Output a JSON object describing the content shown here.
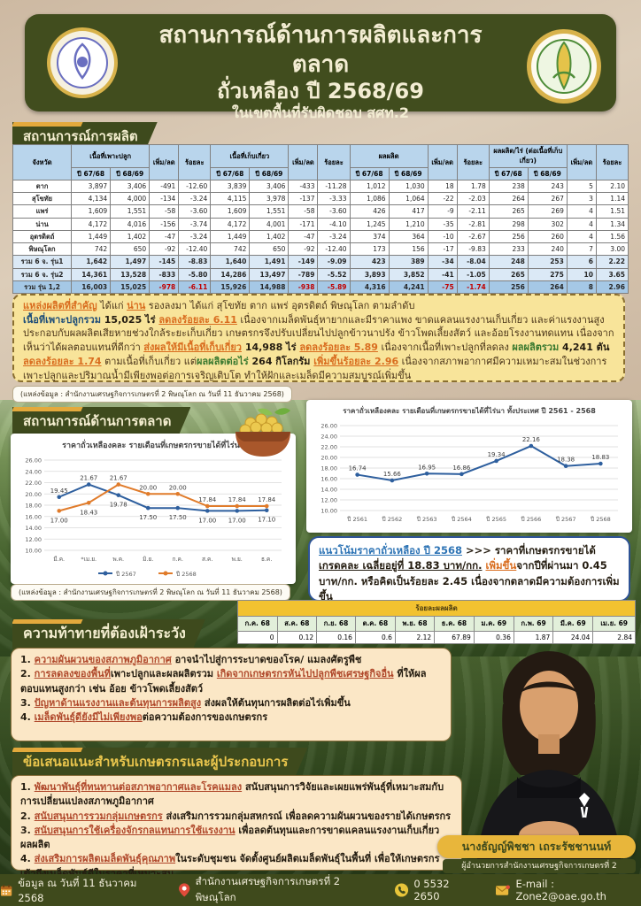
{
  "header": {
    "title_line1": "สถานการณ์ด้านการผลิตและการตลาด",
    "title_line2": "ถั่วเหลือง ปี 2568/69",
    "title_line3": "ในเขตพื้นที่รับผิดชอบ สศท.2"
  },
  "production": {
    "section_title": "สถานการณ์การผลิต",
    "table": {
      "col_province": "จังหวัด",
      "groups": [
        "เนื้อที่เพาะปลูก",
        "เนื้อที่เก็บเกี่ยว",
        "ผลผลิต",
        "ผลผลิต/ไร่ (ต่อเนื้อที่เก็บเกี่ยว)"
      ],
      "inc_label": "เพิ่ม/ลด",
      "pct_label": "ร้อยละ",
      "years": [
        "ปี 67/68",
        "ปี 68/69"
      ],
      "rows": [
        {
          "name": "ตาก",
          "type": "data",
          "v": [
            "3,897",
            "3,406",
            "-491",
            "-12.60",
            "3,839",
            "3,406",
            "-433",
            "-11.28",
            "1,012",
            "1,030",
            "18",
            "1.78",
            "238",
            "243",
            "5",
            "2.10"
          ]
        },
        {
          "name": "สุโขทัย",
          "type": "data",
          "v": [
            "4,134",
            "4,000",
            "-134",
            "-3.24",
            "4,115",
            "3,978",
            "-137",
            "-3.33",
            "1,086",
            "1,064",
            "-22",
            "-2.03",
            "264",
            "267",
            "3",
            "1.14"
          ]
        },
        {
          "name": "แพร่",
          "type": "data",
          "v": [
            "1,609",
            "1,551",
            "-58",
            "-3.60",
            "1,609",
            "1,551",
            "-58",
            "-3.60",
            "426",
            "417",
            "-9",
            "-2.11",
            "265",
            "269",
            "4",
            "1.51"
          ]
        },
        {
          "name": "น่าน",
          "type": "data",
          "v": [
            "4,172",
            "4,016",
            "-156",
            "-3.74",
            "4,172",
            "4,001",
            "-171",
            "-4.10",
            "1,245",
            "1,210",
            "-35",
            "-2.81",
            "298",
            "302",
            "4",
            "1.34"
          ]
        },
        {
          "name": "อุตรดิตถ์",
          "type": "data",
          "v": [
            "1,449",
            "1,402",
            "-47",
            "-3.24",
            "1,449",
            "1,402",
            "-47",
            "-3.24",
            "374",
            "364",
            "-10",
            "-2.67",
            "256",
            "260",
            "4",
            "1.56"
          ]
        },
        {
          "name": "พิษณุโลก",
          "type": "data",
          "v": [
            "742",
            "650",
            "-92",
            "-12.40",
            "742",
            "650",
            "-92",
            "-12.40",
            "173",
            "156",
            "-17",
            "-9.83",
            "233",
            "240",
            "7",
            "3.00"
          ]
        },
        {
          "name": "รวม 6 จ. รุ่น1",
          "type": "subtotal",
          "v": [
            "1,642",
            "1,497",
            "-145",
            "-8.83",
            "1,640",
            "1,491",
            "-149",
            "-9.09",
            "423",
            "389",
            "-34",
            "-8.04",
            "248",
            "253",
            "6",
            "2.22"
          ]
        },
        {
          "name": "รวม 6 จ. รุ่น2",
          "type": "subtotal",
          "v": [
            "14,361",
            "13,528",
            "-833",
            "-5.80",
            "14,286",
            "13,497",
            "-789",
            "-5.52",
            "3,893",
            "3,852",
            "-41",
            "-1.05",
            "265",
            "275",
            "10",
            "3.65"
          ]
        },
        {
          "name": "รวม รุ่น 1,2",
          "type": "total",
          "v": [
            "16,003",
            "15,025",
            "-978",
            "-6.11",
            "15,926",
            "14,988",
            "-938",
            "-5.89",
            "4,316",
            "4,241",
            "-75",
            "-1.74",
            "256",
            "264",
            "8",
            "2.96"
          ]
        }
      ]
    },
    "note_segments": [
      {
        "t": "แหล่งผลิตที่สำคัญ",
        "s": "hl"
      },
      {
        "t": " ได้แก่ ",
        "s": "n"
      },
      {
        "t": "น่าน",
        "s": "hl"
      },
      {
        "t": " รองลงมา ได้แก่ สุโขทัย ตาก แพร่ อุตรดิตถ์ พิษณุโลก ตามลำดับ\n",
        "s": "n"
      },
      {
        "t": "เนื้อที่เพาะปลูกรวม",
        "s": "k"
      },
      {
        "t": " 15,025 ไร่ ",
        "s": "b"
      },
      {
        "t": "ลดลงร้อยละ 6.11",
        "s": "hl"
      },
      {
        "t": " เนื่องจากเมล็ดพันธุ์หายากและมีราคาแพง ขาดแคลนแรงงานเก็บเกี่ยว และค่าแรงงานสูง ประกอบกับผลผลิตเสียหายช่วงใกล้ระยะเก็บเกี่ยว เกษตรกรจึงปรับเปลี่ยนไปปลูกข้าวนาปรัง ข้าวโพดเลี้ยงสัตว์ และอ้อยโรงงานทดแทน เนื่องจากเห็นว่าได้ผลตอบแทนที่ดีกว่า ",
        "s": "n"
      },
      {
        "t": "ส่งผลให้มีเนื้อที่เก็บเกี่ยว",
        "s": "hl"
      },
      {
        "t": " 14,988 ไร่ ",
        "s": "b"
      },
      {
        "t": "ลดลงร้อยละ 5.89",
        "s": "hl"
      },
      {
        "t": " เนื่องจากเนื้อที่เพาะปลูกที่ลดลง ",
        "s": "n"
      },
      {
        "t": "ผลผลิตรวม",
        "s": "g"
      },
      {
        "t": " 4,241 ตัน ",
        "s": "b"
      },
      {
        "t": "ลดลงร้อยละ 1.74",
        "s": "hl"
      },
      {
        "t": " ตามเนื้อที่เก็บเกี่ยว แต่",
        "s": "n"
      },
      {
        "t": "ผลผลิตต่อไร่",
        "s": "g"
      },
      {
        "t": " 264 กิโลกรัม ",
        "s": "b"
      },
      {
        "t": "เพิ่มขึ้นร้อยละ 2.96",
        "s": "hl"
      },
      {
        "t": " เนื่องจากสภาพอากาศมีความเหมาะสมในช่วงการเพาะปลูกและปริมาณน้ำมีเพียงพอต่อการเจริญเติบโต ทำให้ฝักและเมล็ดมีความสมบูรณ์เพิ่มขึ้น",
        "s": "n"
      }
    ],
    "source": "(แหล่งข้อมูล : สำนักงานเศรษฐกิจการเกษตรที่ 2 พิษณุโลก ณ วันที่ 11 ธันวาคม 2568)"
  },
  "market": {
    "section_title": "สถานการณ์ด้านการตลาด",
    "trend_segments": [
      {
        "t": "แนวโน้มราคาถั่วเหลือง ปี 2568",
        "s": "bl"
      },
      {
        "t": " >>> ",
        "s": "b"
      },
      {
        "t": "ราคาที่เกษตรกรขายได้ ",
        "s": "b"
      },
      {
        "t": "เกรดคละ เฉลี่ยอยู่ที่ 18.83 บาท/กก.",
        "s": "bu"
      },
      {
        "t": " ",
        "s": "b"
      },
      {
        "t": "เพิ่มขึ้น",
        "s": "hl"
      },
      {
        "t": "จากปีที่ผ่านมา 0.45 บาท/กก. หรือคิดเป็นร้อยละ 2.45 เนื่องจากตลาดมีความต้องการเพิ่มขึ้น",
        "s": "b"
      }
    ],
    "source": "(แหล่งข้อมูล : สำนักงานเศรษฐกิจการเกษตรที่ 2 พิษณุโลก ณ วันที่ 11 ธันวาคม 2568)"
  },
  "chart_data": [
    {
      "type": "line",
      "title": "ราคาถั่วเหลืองคละ รายเดือนที่เกษตรกรขายได้ที่ไร่นา",
      "categories": [
        "มี.ค.",
        "*เม.ย.",
        "พ.ค.",
        "มิ.ย.",
        "ก.ค.",
        "ส.ค.",
        "พ.ย.",
        "ธ.ค."
      ],
      "series": [
        {
          "name": "ปี 2567",
          "color": "#2e5f9e",
          "values": [
            19.45,
            21.67,
            19.78,
            17.5,
            17.5,
            17.0,
            17.0,
            17.1
          ]
        },
        {
          "name": "ปี 2568",
          "color": "#e07b2a",
          "values": [
            17.0,
            18.43,
            21.67,
            20.0,
            20.0,
            17.84,
            17.84,
            17.84
          ]
        }
      ],
      "ylim": [
        10,
        26
      ],
      "ytick_step": 2,
      "grid": true,
      "legend_position": "bottom"
    },
    {
      "type": "line",
      "title": "ราคาถั่วเหลืองคละ รายเดือนที่เกษตรกรขายได้ที่ไร่นา  ทั้งประเทศ  ปี 2561 - 2568",
      "categories": [
        "ปี 2561",
        "ปี 2562",
        "ปี 2563",
        "ปี 2564",
        "ปี 2565",
        "ปี 2566",
        "ปี 2567",
        "ปี 2568"
      ],
      "series": [
        {
          "name": "ราคาเฉลี่ยทั้งประเทศ",
          "color": "#2e5f9e",
          "values": [
            16.74,
            15.66,
            16.95,
            16.86,
            19.34,
            22.16,
            18.38,
            18.83
          ]
        }
      ],
      "ylim": [
        10,
        26
      ],
      "ytick_step": 2,
      "grid": true,
      "legend_position": "none"
    },
    {
      "type": "table",
      "title": "ร้อยละผลผลิต",
      "categories": [
        "ก.ค. 68",
        "ส.ค. 68",
        "ก.ย. 68",
        "ต.ค. 68",
        "พ.ย. 68",
        "ธ.ค. 68",
        "ม.ค. 69",
        "ก.พ. 69",
        "มี.ค. 69",
        "เม.ย. 69"
      ],
      "values": [
        "0",
        "0.12",
        "0.16",
        "0.6",
        "2.12",
        "67.89",
        "0.36",
        "1.87",
        "24.04",
        "2.84"
      ]
    }
  ],
  "challenges": {
    "section_title": "ความท้าทายที่ต้องเฝ้าระวัง",
    "items": [
      {
        "num": "1.",
        "segments": [
          {
            "t": "ความผันผวนของสภาพภูมิอากาศ",
            "s": "u"
          },
          {
            "t": " อาจนำไปสู่การระบาดของโรค/ แมลงศัตรูพืช",
            "s": "b"
          }
        ]
      },
      {
        "num": "2.",
        "segments": [
          {
            "t": "การลดลงของพื้นที่",
            "s": "u"
          },
          {
            "t": "เพาะปลูกและผลผลิตรวม ",
            "s": "b"
          },
          {
            "t": "เกิดจากเกษตรกรหันไปปลูกพืชเศรษฐกิจอื่น",
            "s": "u"
          },
          {
            "t": " ที่ให้ผลตอบแทนสูงกว่า เช่น อ้อย ข้าวโพดเลี้ยงสัตว์",
            "s": "b"
          }
        ]
      },
      {
        "num": "3.",
        "segments": [
          {
            "t": "ปัญหาด้านแรงงานและต้นทุนการผลิตสูง",
            "s": "u"
          },
          {
            "t": " ส่งผลให้ต้นทุนการผลิตต่อไร่เพิ่มขึ้น",
            "s": "b"
          }
        ]
      },
      {
        "num": "4.",
        "segments": [
          {
            "t": "เมล็ดพันธุ์ดียังมีไม่เพียงพอ",
            "s": "u"
          },
          {
            "t": "ต่อความต้องการของเกษตรกร",
            "s": "b"
          }
        ]
      }
    ]
  },
  "recommendations": {
    "section_title": "ข้อเสนอแนะสำหรับเกษตรกรและผู้ประกอบการ",
    "items": [
      {
        "num": "1.",
        "segments": [
          {
            "t": "พัฒนาพันธุ์ที่ทนทานต่อสภาพอากาศและโรคแมลง",
            "s": "u"
          },
          {
            "t": " สนับสนุนการวิจัยและเผยแพร่พันธุ์ที่เหมาะสมกับการเปลี่ยนแปลงสภาพภูมิอากาศ",
            "s": "b"
          }
        ]
      },
      {
        "num": "2.",
        "segments": [
          {
            "t": "สนับสนุนการรวมกลุ่มเกษตรกร",
            "s": "u"
          },
          {
            "t": " ส่งเสริมการรวมกลุ่มสหกรณ์ เพื่อลดความผันผวนของรายได้เกษตรกร",
            "s": "b"
          }
        ]
      },
      {
        "num": "3.",
        "segments": [
          {
            "t": "สนับสนุนการใช้เครื่องจักรกลแทนการใช้แรงงาน",
            "s": "u"
          },
          {
            "t": " เพื่อลดต้นทุนและการขาดแคลนแรงงานเก็บเกี่ยวผลผลิต",
            "s": "b"
          }
        ]
      },
      {
        "num": "4.",
        "segments": [
          {
            "t": "ส่งเสริมการผลิตเมล็ดพันธุ์คุณภาพ",
            "s": "u"
          },
          {
            "t": "ในระดับชุมชน จัดตั้งศูนย์ผลิตเมล็ดพันธุ์ในพื้นที่ เพื่อให้เกษตรกรเข้าถึงเมล็ดพันธุ์ดีในราคาที่เหมาะสม",
            "s": "b"
          }
        ]
      }
    ],
    "director_name": "นางธัญญ์พิชชา เถระรัชชานนท์",
    "director_title": "ผู้อำนวยการสำนักงานเศรษฐกิจการเกษตรที่ 2"
  },
  "footer": {
    "items": [
      {
        "icon": "calendar-icon",
        "text": "ข้อมูล ณ วันที่ 11 ธันวาคม 2568"
      },
      {
        "icon": "location-pin-icon",
        "text": "สำนักงานเศรษฐกิจการเกษตรที่ 2 พิษณุโลก"
      },
      {
        "icon": "phone-icon",
        "text": "0 5532 2650"
      },
      {
        "icon": "envelope-icon",
        "text": "E-mail : Zone2@oae.go.th"
      }
    ]
  },
  "colors": {
    "header_green": "#414d1e",
    "banner_yellow": "#e3a93c",
    "table_header_blue": "#b9d5ec",
    "negative_red": "#d9605f",
    "note_yellow": "#f8e49a",
    "cream_box": "#fbe7c6",
    "series_2567_blue": "#2e5f9e",
    "series_2568_orange": "#e07b2a"
  }
}
